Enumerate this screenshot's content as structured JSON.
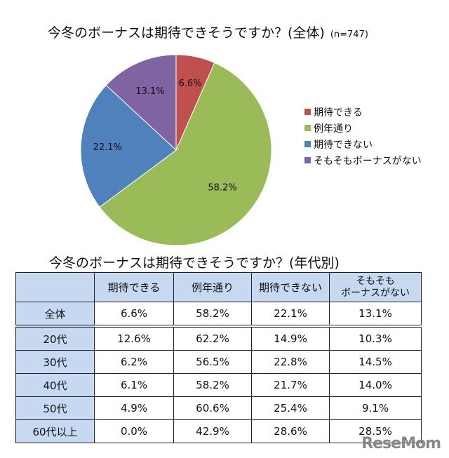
{
  "chart_data": [
    {
      "type": "pie",
      "title": "今冬のボーナスは期待できそうですか？(全体)",
      "subtitle": "(n=747)",
      "categories": [
        "期待できる",
        "例年通り",
        "期待できない",
        "そもそもボーナスがない"
      ],
      "values": [
        6.6,
        58.2,
        22.1,
        13.1
      ],
      "labels": [
        "6.6%",
        "58.2%",
        "22.1%",
        "13.1%"
      ],
      "colors": [
        "#c0504d",
        "#9bbb59",
        "#4f81bd",
        "#8064a2"
      ],
      "legend": "right"
    },
    {
      "type": "table",
      "title": "今冬のボーナスは期待できそうですか？(年代別)",
      "columns": [
        "",
        "期待できる",
        "例年通り",
        "期待できない",
        "そもそも\nボーナスがない"
      ],
      "rows": [
        [
          "全体",
          "6.6%",
          "58.2%",
          "22.1%",
          "13.1%"
        ],
        [
          "20代",
          "12.6%",
          "62.2%",
          "14.9%",
          "10.3%"
        ],
        [
          "30代",
          "6.2%",
          "56.5%",
          "22.8%",
          "14.5%"
        ],
        [
          "40代",
          "6.1%",
          "58.2%",
          "21.7%",
          "14.0%"
        ],
        [
          "50代",
          "4.9%",
          "60.6%",
          "25.4%",
          "9.1%"
        ],
        [
          "60代以上",
          "0.0%",
          "42.9%",
          "28.6%",
          "28.5%"
        ]
      ]
    }
  ],
  "watermark": "ReseMom"
}
